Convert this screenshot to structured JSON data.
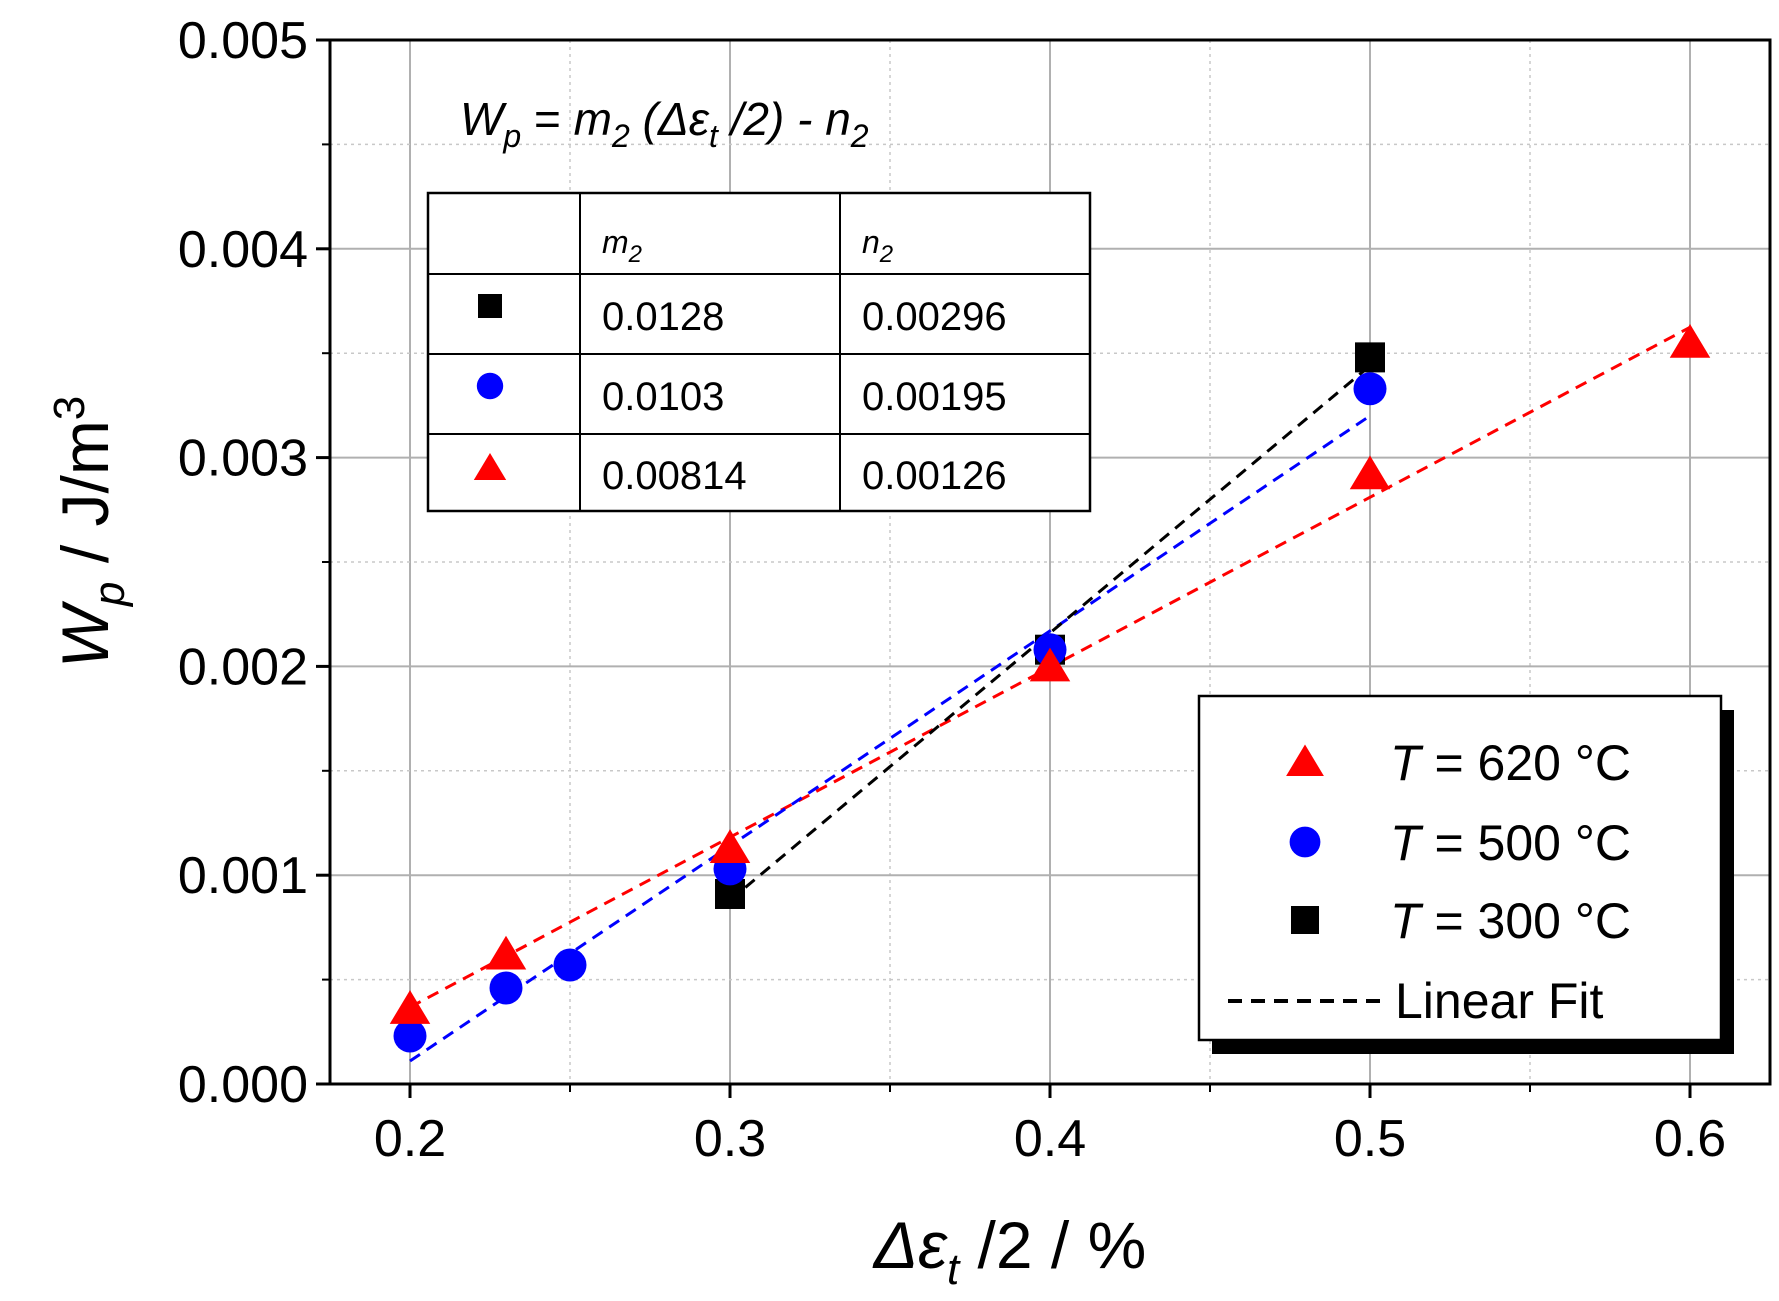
{
  "chart_data": {
    "type": "scatter",
    "title": "",
    "xlabel": {
      "main": "Δε",
      "sub": "t",
      "rest": " /2 / %"
    },
    "ylabel": {
      "main": "W",
      "sub": "p",
      "rest": " / J/m",
      "sup": "3"
    },
    "xlim": [
      0.175,
      0.625
    ],
    "ylim": [
      0.0,
      0.005
    ],
    "x_ticks": [
      0.2,
      0.3,
      0.4,
      0.5,
      0.6
    ],
    "x_tick_labels": [
      "0.2",
      "0.3",
      "0.4",
      "0.5",
      "0.6"
    ],
    "y_ticks": [
      0.0,
      0.001,
      0.002,
      0.003,
      0.004,
      0.005
    ],
    "y_tick_labels": [
      "0.000",
      "0.001",
      "0.002",
      "0.003",
      "0.004",
      "0.005"
    ],
    "grid": true,
    "series": [
      {
        "name": "T = 620 °C",
        "legend_var": "T",
        "legend_rest": " = 620 °C",
        "marker": "triangle",
        "color": "#ff0000",
        "x": [
          0.2,
          0.23,
          0.3,
          0.4,
          0.5,
          0.6
        ],
        "y": [
          0.00036,
          0.00062,
          0.00113,
          0.002,
          0.00292,
          0.00355
        ],
        "fit": {
          "m": 0.00814,
          "n": 0.00126,
          "x_range": [
            0.2,
            0.6
          ]
        }
      },
      {
        "name": "T = 500 °C",
        "legend_var": "T",
        "legend_rest": " = 500 °C",
        "marker": "circle",
        "color": "#0000ff",
        "x": [
          0.2,
          0.23,
          0.25,
          0.3,
          0.4,
          0.5
        ],
        "y": [
          0.00023,
          0.00046,
          0.00057,
          0.00103,
          0.00208,
          0.00333
        ],
        "fit": {
          "m": 0.0103,
          "n": 0.00195,
          "x_range": [
            0.2,
            0.5
          ]
        }
      },
      {
        "name": "T = 300 °C",
        "legend_var": "T",
        "legend_rest": " = 300 °C",
        "marker": "square",
        "color": "#000000",
        "x": [
          0.3,
          0.4,
          0.5
        ],
        "y": [
          0.00091,
          0.00208,
          0.00348
        ],
        "fit": {
          "m": 0.0128,
          "n": 0.00296,
          "x_range": [
            0.3,
            0.5
          ]
        }
      }
    ],
    "fit_legend_label": "Linear Fit",
    "equation": {
      "lhs": "W",
      "lhs_sub": "p",
      "eq_sign": " = ",
      "m": "m",
      "m_sub": "2",
      "open": " (Δε",
      "inner_sub": "t",
      "close": " /2)  - ",
      "n": "n",
      "n_sub": "2"
    },
    "table": {
      "headers": [
        {
          "var": "m",
          "sub": "2"
        },
        {
          "var": "n",
          "sub": "2"
        }
      ],
      "rows": [
        {
          "marker": "square",
          "color": "#000000",
          "m2": "0.0128",
          "n2": "0.00296"
        },
        {
          "marker": "circle",
          "color": "#0000ff",
          "m2": "0.0103",
          "n2": "0.00195"
        },
        {
          "marker": "triangle",
          "color": "#ff0000",
          "m2": "0.00814",
          "n2": "0.00126"
        }
      ]
    },
    "legend_position": "bottom-right"
  }
}
